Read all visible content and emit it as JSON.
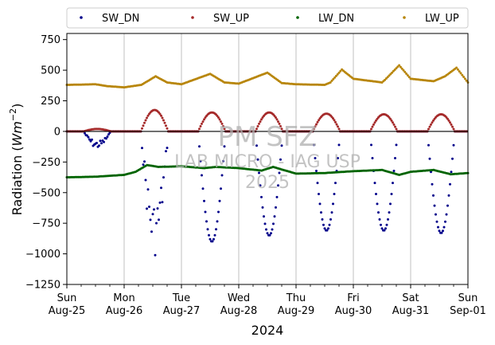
{
  "chart_data": {
    "type": "scatter",
    "ylabel": "Radiation ($Wm^{-2}$)",
    "ylabel_main": "Radiation (",
    "ylabel_unit_base": "Wm",
    "ylabel_unit_exp": "−2",
    "ylabel_close": ")",
    "xlabel": "2024",
    "ylim": [
      -1250,
      800
    ],
    "yticks": [
      -1250,
      -1000,
      -750,
      -500,
      -250,
      0,
      250,
      500,
      750
    ],
    "ytick_labels": [
      "−1250",
      "−1000",
      "−750",
      "−500",
      "−250",
      "0",
      "250",
      "500",
      "750"
    ],
    "xlim": [
      "2024-08-25",
      "2024-09-01"
    ],
    "xticks": [
      {
        "day": 0,
        "line1": "Sun",
        "line2": "Aug-25"
      },
      {
        "day": 1,
        "line1": "Mon",
        "line2": "Aug-26"
      },
      {
        "day": 2,
        "line1": "Tue",
        "line2": "Aug-27"
      },
      {
        "day": 3,
        "line1": "Wed",
        "line2": "Aug-28"
      },
      {
        "day": 4,
        "line1": "Thu",
        "line2": "Aug-29"
      },
      {
        "day": 5,
        "line1": "Fri",
        "line2": "Aug-30"
      },
      {
        "day": 6,
        "line1": "Sat",
        "line2": "Aug-31"
      },
      {
        "day": 7,
        "line1": "Sun",
        "line2": "Sep-01"
      }
    ],
    "grid": "vertical at day ticks",
    "zero_line": true,
    "legend_placement": "top",
    "series": [
      {
        "name": "SW_DN",
        "color": "#00008b",
        "night": 0,
        "daily_peak": [
          -140,
          -1020,
          -900,
          -850,
          -810,
          -810,
          -830
        ],
        "daily_midday_hour": [
          13,
          13,
          13,
          13,
          13,
          13,
          13
        ]
      },
      {
        "name": "SW_UP",
        "color": "#a52a2a",
        "night": 0,
        "daily_peak": [
          20,
          175,
          155,
          155,
          145,
          140,
          140
        ]
      },
      {
        "name": "LW_DN",
        "color": "#006400",
        "points": [
          [
            0,
            -375
          ],
          [
            0.5,
            -370
          ],
          [
            1,
            -355
          ],
          [
            1.2,
            -330
          ],
          [
            1.4,
            -275
          ],
          [
            1.6,
            -290
          ],
          [
            2,
            -285
          ],
          [
            2.4,
            -300
          ],
          [
            2.6,
            -290
          ],
          [
            3,
            -300
          ],
          [
            3.4,
            -320
          ],
          [
            3.6,
            -290
          ],
          [
            4,
            -345
          ],
          [
            4.5,
            -340
          ],
          [
            5,
            -325
          ],
          [
            5.5,
            -315
          ],
          [
            5.8,
            -355
          ],
          [
            6,
            -330
          ],
          [
            6.4,
            -315
          ],
          [
            6.7,
            -350
          ],
          [
            7,
            -340
          ]
        ]
      },
      {
        "name": "LW_UP",
        "color": "#b8860b",
        "points": [
          [
            0,
            380
          ],
          [
            0.5,
            385
          ],
          [
            0.7,
            370
          ],
          [
            1,
            360
          ],
          [
            1.3,
            380
          ],
          [
            1.55,
            450
          ],
          [
            1.75,
            400
          ],
          [
            2,
            385
          ],
          [
            2.5,
            470
          ],
          [
            2.75,
            400
          ],
          [
            3,
            390
          ],
          [
            3.5,
            480
          ],
          [
            3.75,
            395
          ],
          [
            4,
            385
          ],
          [
            4.5,
            380
          ],
          [
            4.6,
            400
          ],
          [
            4.8,
            505
          ],
          [
            5,
            430
          ],
          [
            5.5,
            400
          ],
          [
            5.55,
            420
          ],
          [
            5.8,
            540
          ],
          [
            6,
            430
          ],
          [
            6.4,
            410
          ],
          [
            6.6,
            450
          ],
          [
            6.8,
            520
          ],
          [
            7,
            400
          ]
        ]
      }
    ]
  },
  "watermark": {
    "line1": "PM SFZ",
    "line2": "LAB MICRO - IAG USP",
    "line3": "2025"
  }
}
